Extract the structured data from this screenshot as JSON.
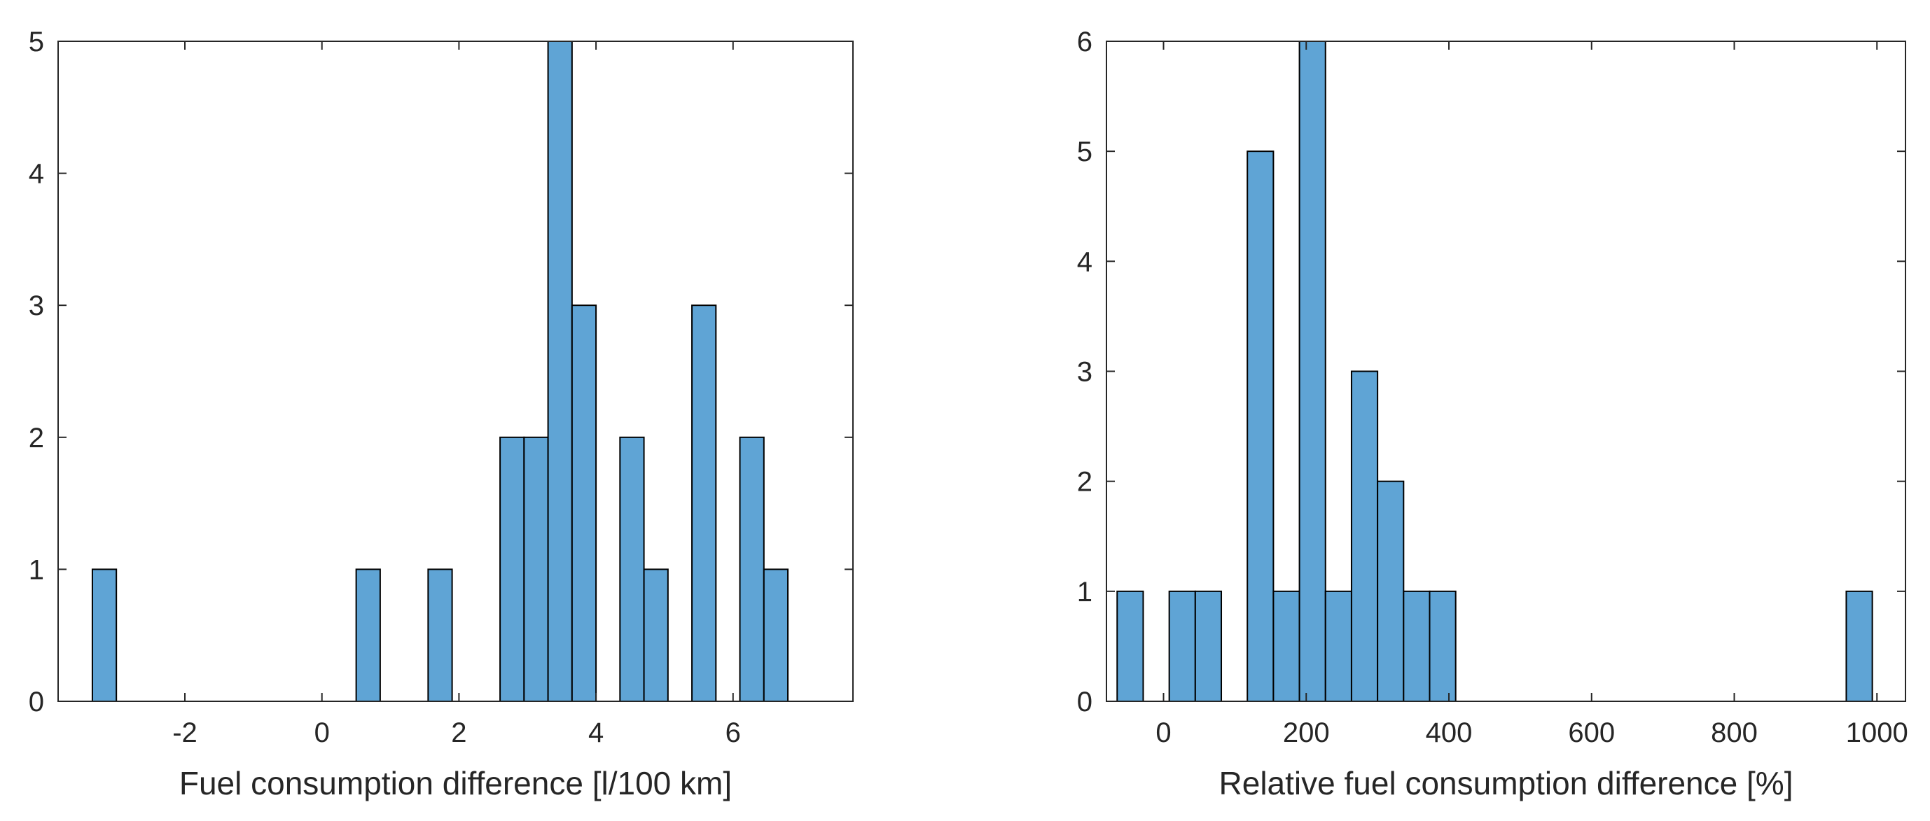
{
  "chart_data": [
    {
      "type": "bar",
      "subtype": "histogram",
      "title": "",
      "xlabel": "Fuel consumption difference [l/100 km]",
      "ylabel": "",
      "xlim": [
        -3.85,
        7.75
      ],
      "ylim": [
        0,
        5
      ],
      "xticks": [
        -2,
        0,
        2,
        4,
        6
      ],
      "xtick_labels": [
        "-2",
        "0",
        "2",
        "4",
        "6"
      ],
      "yticks": [
        0,
        1,
        2,
        3,
        4,
        5
      ],
      "ytick_labels": [
        "0",
        "1",
        "2",
        "3",
        "4",
        "5"
      ],
      "bin_start": -3.35,
      "bin_width": 0.35,
      "counts": [
        1,
        0,
        0,
        0,
        0,
        0,
        0,
        0,
        0,
        0,
        0,
        1,
        0,
        0,
        1,
        0,
        0,
        2,
        2,
        5,
        3,
        0,
        2,
        1,
        0,
        3,
        0,
        2,
        1
      ],
      "bar_color": "#5fa4d5",
      "edge_color": "#000000",
      "grid": false
    },
    {
      "type": "bar",
      "subtype": "histogram",
      "title": "",
      "xlabel": "Relative fuel consumption difference [%]",
      "ylabel": "",
      "xlim": [
        -80,
        1040
      ],
      "ylim": [
        0,
        6
      ],
      "xticks": [
        0,
        200,
        400,
        600,
        800,
        1000
      ],
      "xtick_labels": [
        "0",
        "200",
        "400",
        "600",
        "800",
        "1000"
      ],
      "yticks": [
        0,
        1,
        2,
        3,
        4,
        5,
        6
      ],
      "ytick_labels": [
        "0",
        "1",
        "2",
        "3",
        "4",
        "5",
        "6"
      ],
      "bin_start": -65,
      "bin_width": 36.5,
      "counts": [
        1,
        0,
        1,
        1,
        0,
        5,
        1,
        6,
        1,
        3,
        2,
        1,
        1,
        0,
        0,
        0,
        0,
        0,
        0,
        0,
        0,
        0,
        0,
        0,
        0,
        0,
        0,
        0,
        1
      ],
      "bar_color": "#5fa4d5",
      "edge_color": "#000000",
      "grid": false
    }
  ]
}
